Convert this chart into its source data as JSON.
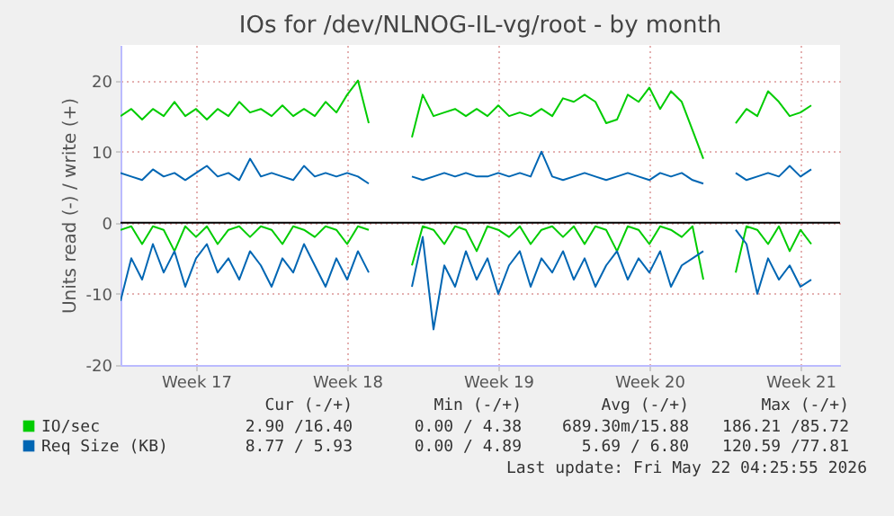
{
  "chart_data": {
    "type": "line",
    "title": "IOs for /dev/NLNOG-IL-vg/root - by month",
    "ylabel": "Units read (-) / write (+)",
    "x": [
      "2026-04-20T00:00",
      "2026-04-20T12:00",
      "2026-04-21T00:00",
      "2026-04-21T12:00",
      "2026-04-22T00:00",
      "2026-04-22T12:00",
      "2026-04-23T00:00",
      "2026-04-23T12:00",
      "2026-04-24T00:00",
      "2026-04-24T12:00",
      "2026-04-25T00:00",
      "2026-04-25T12:00",
      "2026-04-26T00:00",
      "2026-04-26T12:00",
      "2026-04-27T00:00",
      "2026-04-27T12:00",
      "2026-04-28T00:00",
      "2026-04-28T12:00",
      "2026-04-29T00:00",
      "2026-04-29T12:00",
      "2026-04-30T00:00",
      "2026-04-30T12:00",
      "2026-05-01T00:00",
      "2026-05-01T12:00",
      "2026-05-02T00:00",
      "2026-05-02T12:00",
      "2026-05-03T00:00",
      "2026-05-03T12:00",
      "2026-05-04T00:00",
      "2026-05-04T12:00",
      "2026-05-05T00:00",
      "2026-05-05T12:00",
      "2026-05-06T00:00",
      "2026-05-06T12:00",
      "2026-05-07T00:00",
      "2026-05-07T12:00",
      "2026-05-08T00:00",
      "2026-05-08T12:00",
      "2026-05-09T00:00",
      "2026-05-09T12:00",
      "2026-05-10T00:00",
      "2026-05-10T12:00",
      "2026-05-11T00:00",
      "2026-05-11T12:00",
      "2026-05-12T00:00",
      "2026-05-12T12:00",
      "2026-05-13T00:00",
      "2026-05-13T12:00",
      "2026-05-14T00:00",
      "2026-05-14T12:00",
      "2026-05-15T00:00",
      "2026-05-15T12:00",
      "2026-05-16T00:00",
      "2026-05-16T12:00",
      "2026-05-17T00:00",
      "2026-05-17T12:00",
      "2026-05-18T00:00",
      "2026-05-18T12:00",
      "2026-05-19T00:00",
      "2026-05-19T12:00",
      "2026-05-20T00:00",
      "2026-05-20T12:00",
      "2026-05-21T00:00",
      "2026-05-21T12:00",
      "2026-05-22T00:00"
    ],
    "series": [
      {
        "name": "IO/sec",
        "color": "#00cc00",
        "values": [
          15,
          16,
          14.5,
          16,
          15,
          17,
          15,
          16,
          14.5,
          16,
          15,
          17,
          15.5,
          16,
          15,
          16.5,
          15,
          16,
          15,
          17,
          15.5,
          18,
          20,
          14,
          null,
          null,
          null,
          12,
          18,
          15,
          15.5,
          16,
          15,
          16,
          15,
          16.5,
          15,
          15.5,
          15,
          16,
          15,
          17.5,
          17,
          18,
          17,
          14,
          14.5,
          18,
          17,
          19,
          16,
          18.5,
          17,
          13,
          9,
          null,
          null,
          14,
          16,
          15,
          18.5,
          17,
          15,
          15.5,
          16.5
        ]
      },
      {
        "color": "#00cc00",
        "values": [
          -1,
          -0.5,
          -3,
          -0.5,
          -1,
          -4,
          -0.5,
          -2,
          -0.5,
          -3,
          -1,
          -0.5,
          -2,
          -0.5,
          -1,
          -3,
          -0.5,
          -1,
          -2,
          -0.5,
          -1,
          -3,
          -0.5,
          -1,
          null,
          null,
          null,
          -6,
          -0.5,
          -1,
          -3,
          -0.5,
          -1,
          -4,
          -0.5,
          -1,
          -2,
          -0.5,
          -3,
          -1,
          -0.5,
          -2,
          -0.5,
          -3,
          -0.5,
          -1,
          -4,
          -0.5,
          -1,
          -3,
          -0.5,
          -1,
          -2,
          -0.5,
          -8,
          null,
          null,
          -7,
          -0.5,
          -1,
          -3,
          -0.5,
          -4,
          -1,
          -3
        ]
      },
      {
        "name": "Req Size (KB)",
        "color": "#0066b3",
        "values": [
          7,
          6.5,
          6,
          7.5,
          6.5,
          7,
          6,
          7,
          8,
          6.5,
          7,
          6,
          9,
          6.5,
          7,
          6.5,
          6,
          8,
          6.5,
          7,
          6.5,
          7,
          6.5,
          5.5,
          null,
          null,
          null,
          6.5,
          6,
          6.5,
          7,
          6.5,
          7,
          6.5,
          6.5,
          7,
          6.5,
          7,
          6.5,
          10,
          6.5,
          6,
          6.5,
          7,
          6.5,
          6,
          6.5,
          7,
          6.5,
          6,
          7,
          6.5,
          7,
          6,
          5.5,
          null,
          null,
          7,
          6,
          6.5,
          7,
          6.5,
          8,
          6.5,
          7.5
        ]
      },
      {
        "color": "#0066b3",
        "values": [
          -11,
          -5,
          -8,
          -3,
          -7,
          -4,
          -9,
          -5,
          -3,
          -7,
          -5,
          -8,
          -4,
          -6,
          -9,
          -5,
          -7,
          -3,
          -6,
          -9,
          -5,
          -8,
          -4,
          -7,
          null,
          null,
          null,
          -9,
          -2,
          -15,
          -6,
          -9,
          -4,
          -8,
          -5,
          -10,
          -6,
          -4,
          -9,
          -5,
          -7,
          -4,
          -8,
          -5,
          -9,
          -6,
          -4,
          -8,
          -5,
          -7,
          -4,
          -9,
          -6,
          -5,
          -4,
          null,
          null,
          -1,
          -3,
          -10,
          -5,
          -8,
          -6,
          -9,
          -8
        ]
      }
    ],
    "xlim": [
      "2026-04-20T00:00",
      "2026-05-23T08:00"
    ],
    "xticks": [
      {
        "value": "2026-04-23T12:00",
        "label": "Week 17"
      },
      {
        "value": "2026-04-30T12:00",
        "label": "Week 18"
      },
      {
        "value": "2026-05-07T12:00",
        "label": "Week 19"
      },
      {
        "value": "2026-05-14T12:00",
        "label": "Week 20"
      },
      {
        "value": "2026-05-21T12:00",
        "label": "Week 21"
      }
    ],
    "ylim": [
      -20,
      25
    ],
    "yticks": [
      -20,
      -10,
      0,
      10,
      20
    ],
    "ref_lines": [
      {
        "axis": "y",
        "value": 0,
        "color": "#000000"
      }
    ],
    "grid": true,
    "legend": "bottom",
    "line_style": "solid",
    "annotations": [
      "Cur (-/+)",
      "Min (-/+)",
      "Avg (-/+)",
      "Max (-/+)",
      "2.90 /16.40",
      "0.00 / 4.38",
      "689.30m/15.88",
      "186.21 /85.72",
      "8.77 / 5.93",
      "0.00 / 4.89",
      "5.69 / 6.80",
      "120.59 /77.81",
      "Last update: Fri May 22 04:25:55 2026"
    ]
  }
}
